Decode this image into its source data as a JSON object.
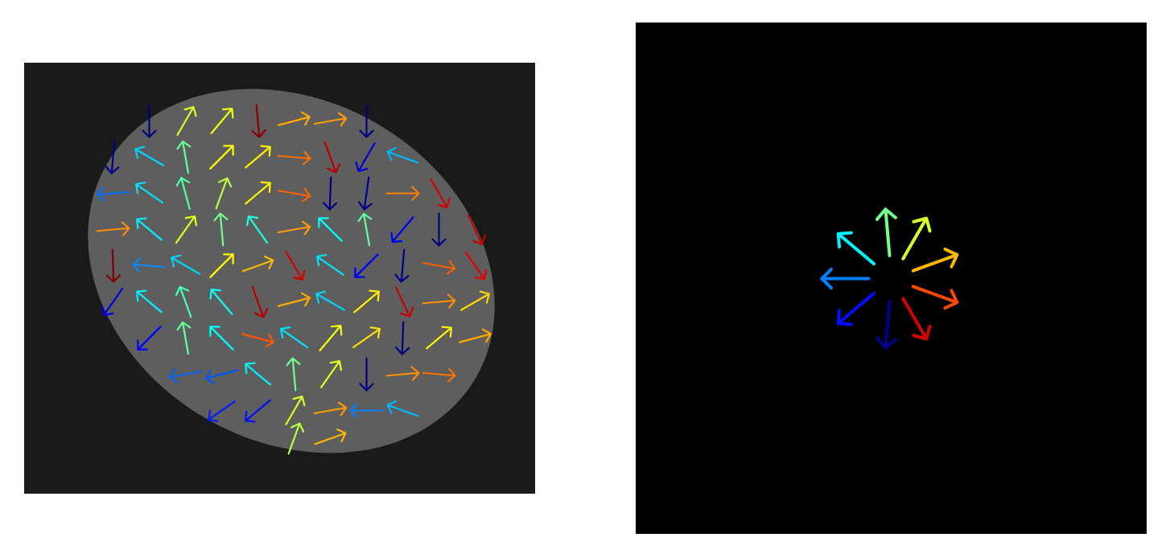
{
  "chart_data": [
    {
      "type": "vector",
      "x": [
        155,
        200,
        245,
        290,
        335,
        380,
        425,
        110,
        155,
        200,
        245,
        290,
        335,
        380,
        425,
        470,
        110,
        155,
        200,
        245,
        290,
        335,
        380,
        425,
        470,
        515,
        110,
        155,
        200,
        245,
        290,
        335,
        380,
        425,
        470,
        515,
        560,
        110,
        155,
        200,
        245,
        290,
        335,
        380,
        425,
        470,
        515,
        560,
        110,
        155,
        200,
        245,
        290,
        335,
        380,
        425,
        470,
        515,
        560,
        155,
        200,
        245,
        290,
        335,
        380,
        425,
        470,
        515,
        560,
        200,
        245,
        290,
        335,
        380,
        425,
        470,
        515,
        245,
        290,
        335,
        380,
        425,
        470,
        335,
        380
      ],
      "y": [
        464,
        464,
        464,
        464,
        464,
        464,
        464,
        419,
        419,
        419,
        419,
        419,
        419,
        419,
        419,
        419,
        374,
        374,
        374,
        374,
        374,
        374,
        374,
        374,
        374,
        374,
        329,
        329,
        329,
        329,
        329,
        329,
        329,
        329,
        329,
        329,
        329,
        284,
        284,
        284,
        284,
        284,
        284,
        284,
        284,
        284,
        284,
        284,
        239,
        239,
        239,
        239,
        239,
        239,
        239,
        239,
        239,
        239,
        239,
        194,
        194,
        194,
        194,
        194,
        194,
        194,
        194,
        194,
        194,
        149,
        149,
        149,
        149,
        149,
        149,
        149,
        149,
        104,
        104,
        104,
        104,
        104,
        104,
        69,
        69
      ],
      "angle": [
        270,
        60,
        50,
        275,
        15,
        10,
        270,
        265,
        150,
        100,
        45,
        40,
        355,
        290,
        240,
        160,
        185,
        145,
        105,
        70,
        40,
        350,
        268,
        262,
        0,
        300,
        5,
        140,
        55,
        95,
        125,
        10,
        135,
        100,
        230,
        270,
        295,
        272,
        175,
        150,
        45,
        20,
        300,
        145,
        225,
        265,
        350,
        305,
        235,
        140,
        110,
        130,
        290,
        15,
        150,
        40,
        295,
        5,
        30,
        225,
        100,
        135,
        345,
        145,
        50,
        35,
        268,
        40,
        15,
        190,
        195,
        140,
        95,
        55,
        270,
        5,
        355,
        215,
        220,
        60,
        10,
        180,
        160,
        70,
        20
      ],
      "xlim": [
        0,
        635
      ],
      "ylim": [
        0,
        536
      ],
      "tick_labels": false
    },
    {
      "type": "vector",
      "angle": [
        140,
        95,
        60,
        20,
        340,
        300,
        265,
        220,
        180
      ],
      "xlim": [
        -1,
        1
      ],
      "ylim": [
        -1,
        1
      ],
      "tick_labels": false
    }
  ]
}
